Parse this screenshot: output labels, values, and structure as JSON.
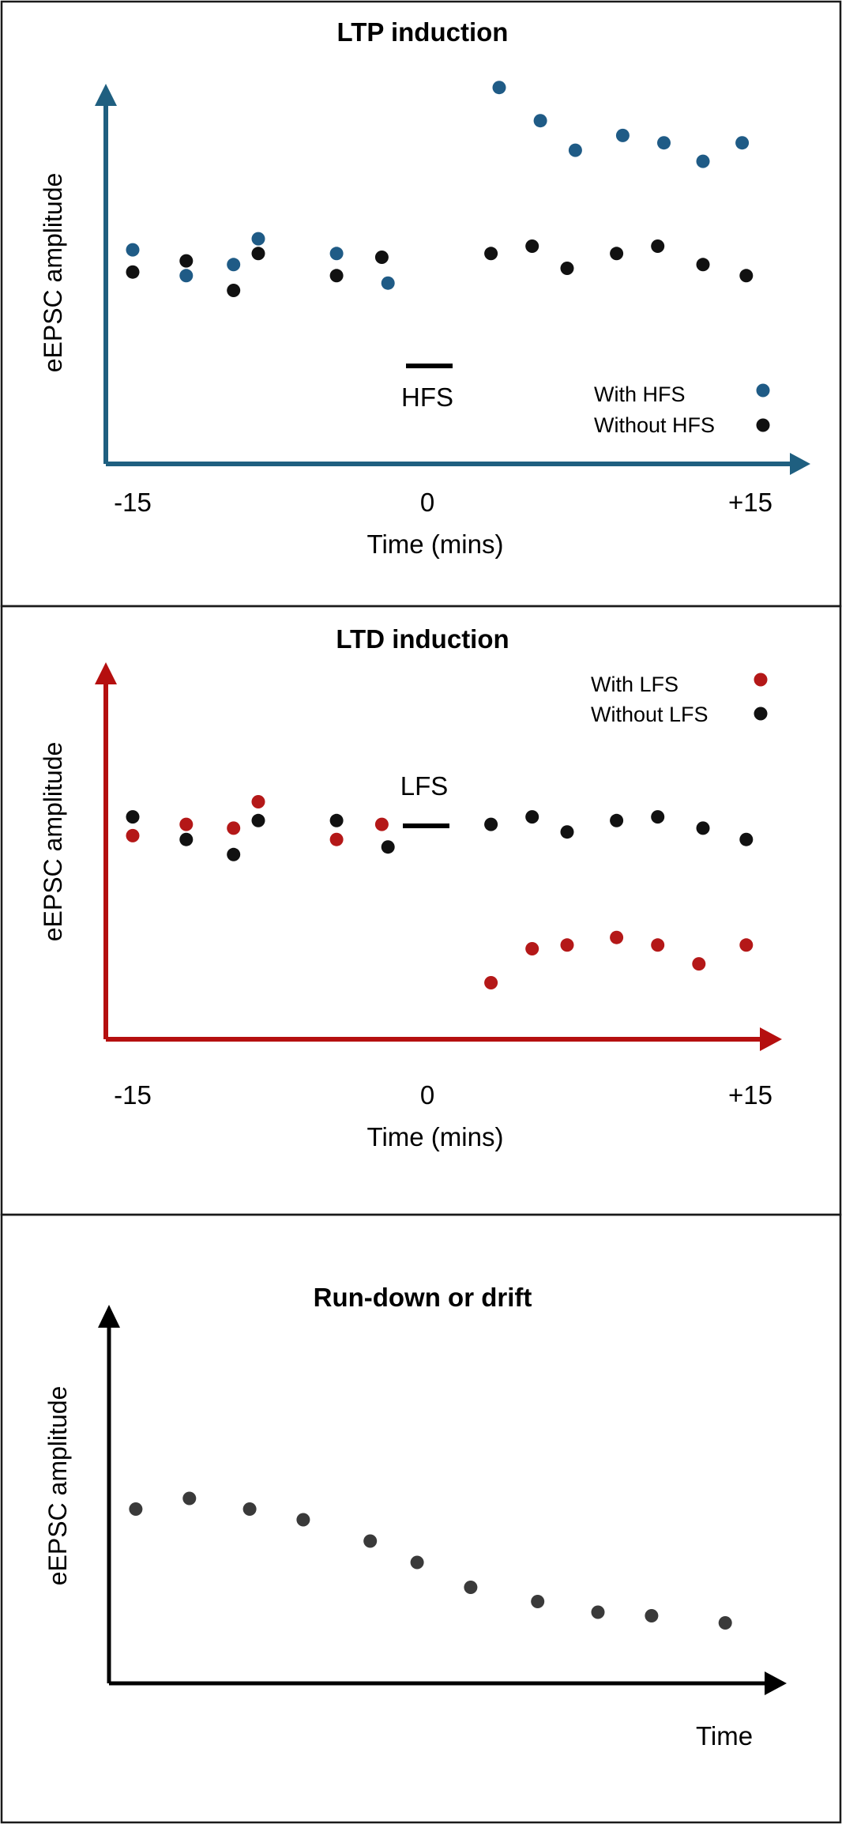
{
  "colors": {
    "ltp_axis": "#1f5f80",
    "ltd_axis": "#b50f0f",
    "drift_axis": "#000000",
    "with_hfs": "#1f5b86",
    "with_lfs": "#b41818",
    "without": "#111111",
    "drift_points": "#3a3a3a"
  },
  "chart_data": [
    {
      "type": "scatter",
      "title": "LTP induction",
      "ylabel": "eEPSC amplitude",
      "xlabel": "Time (mins)",
      "x_ticks": [
        -15,
        0,
        15
      ],
      "x_tick_labels": [
        "-15",
        "0",
        "+15"
      ],
      "xlim": [
        -15.5,
        16.5
      ],
      "ylim": [
        0,
        100
      ],
      "stimulus": {
        "label": "HFS",
        "x_start": -1,
        "x_end": 1,
        "y": 26
      },
      "series": [
        {
          "name": "With HFS",
          "color": "#1f5b86",
          "x": [
            -15,
            -12.4,
            -10.1,
            -8.9,
            -5.1,
            -2.6,
            2.8,
            4.8,
            6.5,
            8.8,
            10.8,
            12.7,
            14.6
          ],
          "y": [
            58,
            51,
            54,
            61,
            57,
            49,
            102,
            93,
            85,
            89,
            87,
            82,
            87
          ]
        },
        {
          "name": "Without HFS",
          "color": "#111111",
          "x": [
            -15,
            -12.4,
            -10.1,
            -8.9,
            -5.1,
            -2.9,
            2.4,
            4.4,
            6.1,
            8.5,
            10.5,
            12.7,
            14.8
          ],
          "y": [
            52,
            55,
            47,
            57,
            51,
            56,
            57,
            59,
            53,
            57,
            59,
            54,
            51
          ]
        }
      ],
      "legend_position": "bottom-right"
    },
    {
      "type": "scatter",
      "title": "LTD induction",
      "ylabel": "eEPSC amplitude",
      "xlabel": "Time (mins)",
      "x_ticks": [
        -15,
        0,
        15
      ],
      "x_tick_labels": [
        "-15",
        "0",
        "+15"
      ],
      "xlim": [
        -15.5,
        16.5
      ],
      "ylim": [
        0,
        100
      ],
      "stimulus": {
        "label": "LFS",
        "x_start": -1,
        "x_end": 1,
        "y": 59
      },
      "series": [
        {
          "name": "With LFS",
          "color": "#b41818",
          "x": [
            -15,
            -12.4,
            -10.1,
            -8.9,
            -5.1,
            -2.9,
            2.4,
            4.4,
            6.1,
            8.5,
            10.5,
            12.5,
            14.8
          ],
          "y": [
            54,
            57,
            56,
            63,
            53,
            57,
            15,
            24,
            25,
            27,
            25,
            20,
            25
          ]
        },
        {
          "name": "Without LFS",
          "color": "#111111",
          "x": [
            -15,
            -12.4,
            -10.1,
            -8.9,
            -5.1,
            -2.6,
            2.4,
            4.4,
            6.1,
            8.5,
            10.5,
            12.7,
            14.8
          ],
          "y": [
            59,
            53,
            49,
            58,
            58,
            51,
            57,
            59,
            55,
            58,
            59,
            56,
            53
          ]
        }
      ],
      "legend_position": "top-right"
    },
    {
      "type": "scatter",
      "title": "Run-down or drift",
      "ylabel": "eEPSC amplitude",
      "xlabel": "Time",
      "x_ticks": [],
      "xlim": [
        0,
        100
      ],
      "ylim": [
        0,
        100
      ],
      "series": [
        {
          "name": "",
          "color": "#3a3a3a",
          "x": [
            4,
            12,
            21,
            29,
            39,
            46,
            54,
            64,
            73,
            81,
            92
          ],
          "y": [
            49,
            52,
            49,
            46,
            40,
            34,
            27,
            23,
            20,
            19,
            17
          ]
        }
      ]
    }
  ]
}
